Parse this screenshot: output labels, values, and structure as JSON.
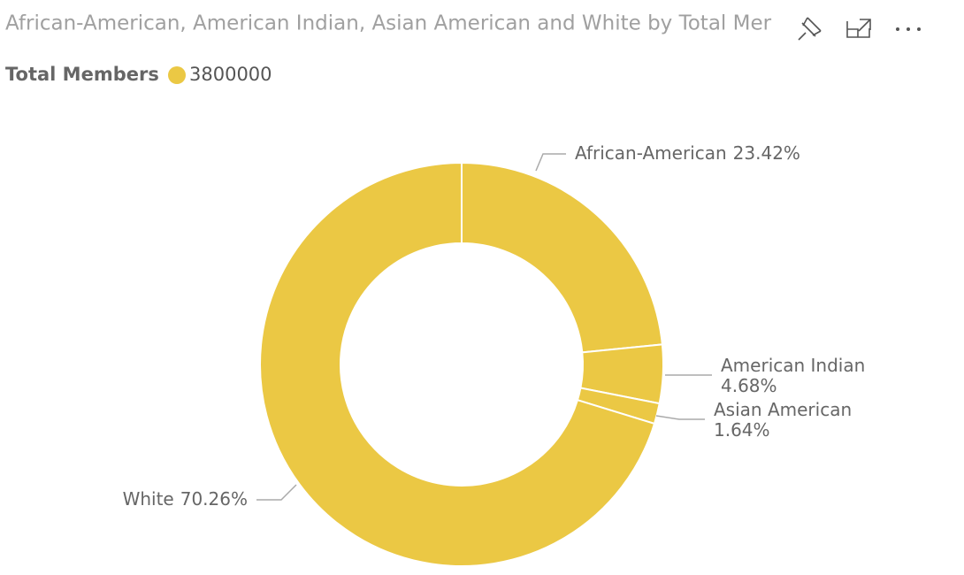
{
  "chart_data": {
    "type": "donut",
    "title": "African-American, American Indian, Asian American and White by Total Mer",
    "legend_title": "Total Members",
    "categories": [
      "African-American",
      "American Indian",
      "Asian American",
      "White"
    ],
    "series": [
      {
        "name": "3800000",
        "color": "#ebc844",
        "values": [
          23.42,
          4.68,
          1.64,
          70.26
        ],
        "value_labels": [
          "23.42%",
          "4.68%",
          "1.64%",
          "70.26%"
        ]
      }
    ]
  }
}
